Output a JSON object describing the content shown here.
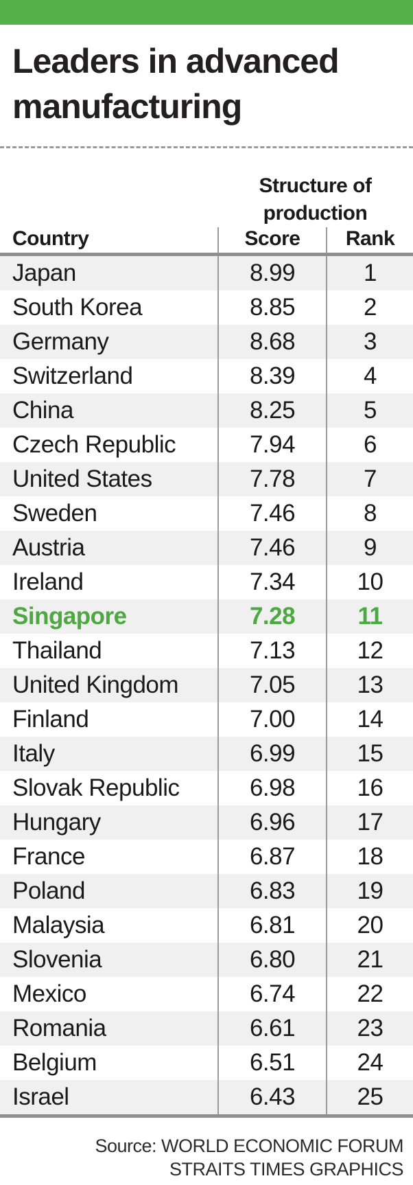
{
  "header": {
    "title": "Leaders in advanced manufacturing"
  },
  "chart_data": {
    "type": "table",
    "title": "Leaders in advanced manufacturing",
    "group_header": "Structure of production",
    "columns": [
      "Country",
      "Score",
      "Rank"
    ],
    "highlighted_row": "Singapore",
    "rows": [
      {
        "country": "Japan",
        "score": "8.99",
        "rank": "1"
      },
      {
        "country": "South Korea",
        "score": "8.85",
        "rank": "2"
      },
      {
        "country": "Germany",
        "score": "8.68",
        "rank": "3"
      },
      {
        "country": "Switzerland",
        "score": "8.39",
        "rank": "4"
      },
      {
        "country": "China",
        "score": "8.25",
        "rank": "5"
      },
      {
        "country": "Czech Republic",
        "score": "7.94",
        "rank": "6"
      },
      {
        "country": "United States",
        "score": "7.78",
        "rank": "7"
      },
      {
        "country": "Sweden",
        "score": "7.46",
        "rank": "8"
      },
      {
        "country": "Austria",
        "score": "7.46",
        "rank": "9"
      },
      {
        "country": "Ireland",
        "score": "7.34",
        "rank": "10"
      },
      {
        "country": "Singapore",
        "score": "7.28",
        "rank": "11",
        "highlight": true
      },
      {
        "country": "Thailand",
        "score": "7.13",
        "rank": "12"
      },
      {
        "country": "United Kingdom",
        "score": "7.05",
        "rank": "13"
      },
      {
        "country": "Finland",
        "score": "7.00",
        "rank": "14"
      },
      {
        "country": "Italy",
        "score": "6.99",
        "rank": "15"
      },
      {
        "country": "Slovak Republic",
        "score": "6.98",
        "rank": "16"
      },
      {
        "country": "Hungary",
        "score": "6.96",
        "rank": "17"
      },
      {
        "country": "France",
        "score": "6.87",
        "rank": "18"
      },
      {
        "country": "Poland",
        "score": "6.83",
        "rank": "19"
      },
      {
        "country": "Malaysia",
        "score": "6.81",
        "rank": "20"
      },
      {
        "country": "Slovenia",
        "score": "6.80",
        "rank": "21"
      },
      {
        "country": "Mexico",
        "score": "6.74",
        "rank": "22"
      },
      {
        "country": "Romania",
        "score": "6.61",
        "rank": "23"
      },
      {
        "country": "Belgium",
        "score": "6.51",
        "rank": "24"
      },
      {
        "country": "Israel",
        "score": "6.43",
        "rank": "25"
      }
    ]
  },
  "footer": {
    "source_line1": "Source: WORLD ECONOMIC FORUM",
    "source_line2": "STRAITS TIMES GRAPHICS"
  },
  "colors": {
    "brand-green": "#55b04b",
    "highlight-green": "#4ca840",
    "stripe": "#f0f0f0",
    "rule": "#8e8e8e",
    "text": "#1a1a1a"
  }
}
